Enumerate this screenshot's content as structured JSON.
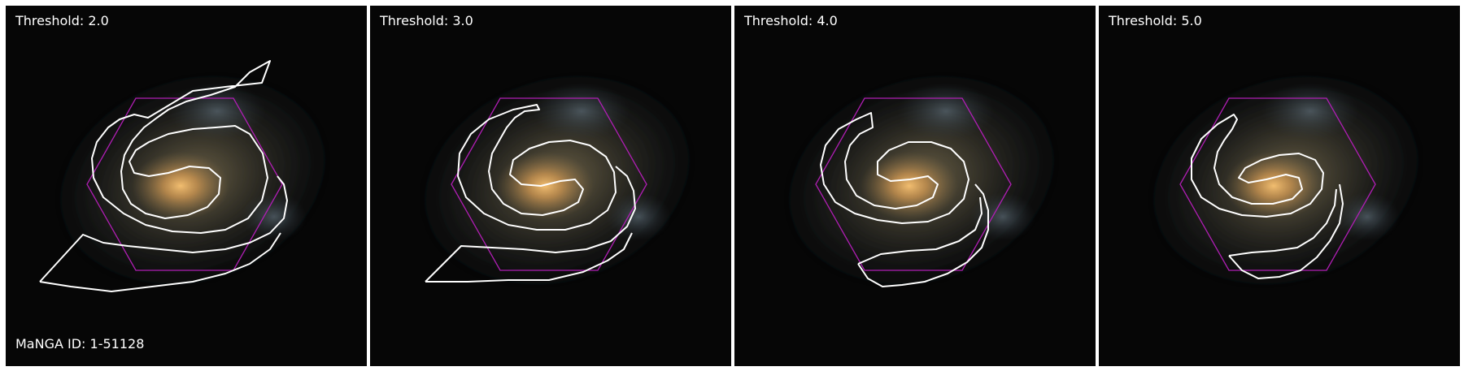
{
  "panels": [
    {
      "threshold_label": "Threshold: 2.0"
    },
    {
      "threshold_label": "Threshold: 3.0"
    },
    {
      "threshold_label": "Threshold: 4.0"
    },
    {
      "threshold_label": "Threshold: 5.0"
    }
  ],
  "manga_id": "MaNGA ID: 1-51128",
  "colors": {
    "background": "#050505",
    "contour": "#ffffff",
    "ifu_hexagon": "#b01eb4",
    "galaxy_core": "#e8b060"
  }
}
